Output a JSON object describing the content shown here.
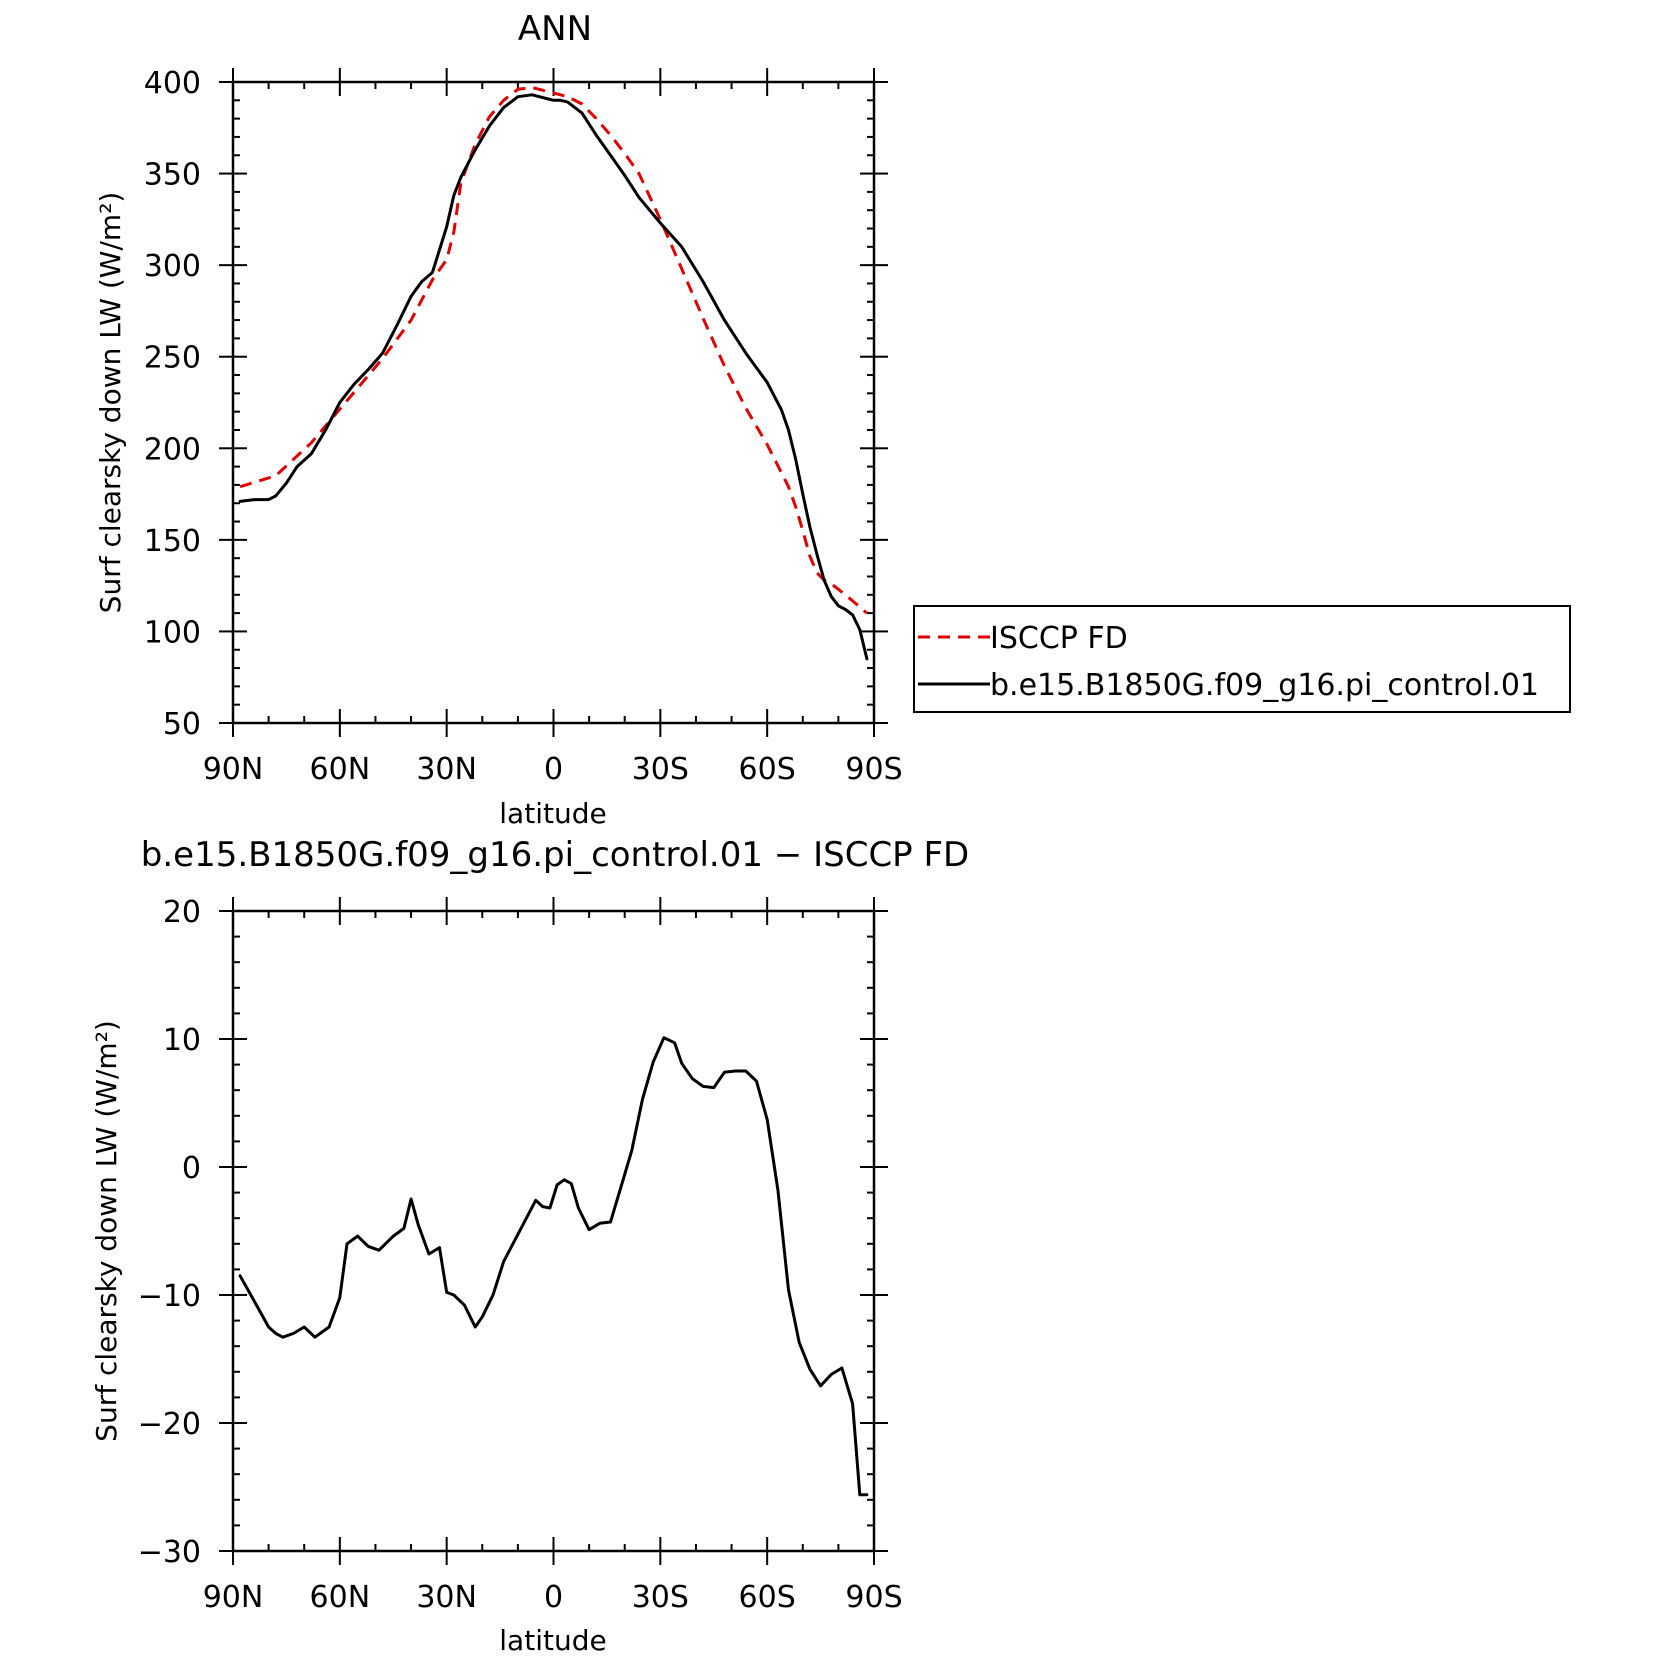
{
  "chart_data": [
    {
      "type": "line",
      "title": "ANN",
      "xlabel": "latitude",
      "ylabel": "Surf clearsky down LW (W/m²)",
      "xlim": [
        90,
        -90
      ],
      "ylim": [
        50,
        400
      ],
      "x_ticks": [
        90,
        60,
        30,
        0,
        -30,
        -60,
        -90
      ],
      "x_tick_labels": [
        "90N",
        "60N",
        "30N",
        "0",
        "30S",
        "60S",
        "90S"
      ],
      "y_ticks": [
        50,
        100,
        150,
        200,
        250,
        300,
        350,
        400
      ],
      "y_tick_labels": [
        "50",
        "100",
        "150",
        "200",
        "250",
        "300",
        "350",
        "400"
      ],
      "legend_position": "right",
      "series": [
        {
          "name": "ISCCP FD",
          "color": "#e00000",
          "dash": "dashed",
          "x": [
            88,
            78,
            68,
            58,
            48,
            40,
            34,
            30,
            28,
            26,
            22,
            18,
            14,
            10,
            6,
            2,
            0,
            -4,
            -8,
            -12,
            -16,
            -20,
            -24,
            -30,
            -36,
            -42,
            -48,
            -54,
            -60,
            -66,
            -68,
            -70,
            -72,
            -74,
            -76,
            -78,
            -82,
            -88
          ],
          "y": [
            179,
            185,
            203,
            226,
            249,
            270,
            292,
            303,
            318,
            345,
            366,
            381,
            390,
            396,
            397,
            395,
            394,
            392,
            388,
            380,
            371,
            361,
            350,
            325,
            298,
            271,
            245,
            222,
            202,
            179,
            168,
            155,
            141,
            132,
            128,
            126,
            120,
            110
          ]
        },
        {
          "name": "b.e15.B1850G.f09_g16.pi_control.01",
          "color": "#000000",
          "dash": "solid",
          "x": [
            88,
            84,
            80,
            78,
            75,
            72,
            68,
            64,
            60,
            56,
            52,
            48,
            44,
            40,
            37,
            34,
            30,
            28,
            26,
            22,
            18,
            14,
            10,
            6,
            4,
            2,
            0,
            -2,
            -4,
            -8,
            -12,
            -16,
            -20,
            -24,
            -30,
            -36,
            -42,
            -48,
            -54,
            -60,
            -64,
            -66,
            -68,
            -70,
            -72,
            -74,
            -76,
            -78,
            -80,
            -82,
            -84,
            -86,
            -88
          ],
          "y": [
            171,
            172,
            172,
            174,
            181,
            190,
            197,
            210,
            225,
            235,
            243,
            252,
            267,
            283,
            291,
            296,
            321,
            338,
            348,
            363,
            376,
            386,
            392,
            393,
            392,
            391,
            390,
            390,
            389,
            383,
            371,
            360,
            349,
            337,
            323,
            310,
            291,
            270,
            252,
            236,
            221,
            210,
            194,
            175,
            157,
            142,
            128,
            119,
            114,
            112,
            109,
            101,
            85
          ]
        }
      ]
    },
    {
      "type": "line",
      "title": "b.e15.B1850G.f09_g16.pi_control.01 − ISCCP FD",
      "xlabel": "latitude",
      "ylabel": "Surf clearsky down LW (W/m²)",
      "xlim": [
        90,
        -90
      ],
      "ylim": [
        -30,
        20
      ],
      "x_ticks": [
        90,
        60,
        30,
        0,
        -30,
        -60,
        -90
      ],
      "x_tick_labels": [
        "90N",
        "60N",
        "30N",
        "0",
        "30S",
        "60S",
        "90S"
      ],
      "y_ticks": [
        -30,
        -20,
        -10,
        0,
        10,
        20
      ],
      "y_tick_labels": [
        "−30",
        "−20",
        "−10",
        "0",
        "10",
        "20"
      ],
      "series": [
        {
          "color": "#000000",
          "dash": "solid",
          "x": [
            88,
            84,
            80,
            78,
            76,
            73,
            70,
            67,
            63,
            60,
            58,
            55,
            52,
            49,
            45,
            42,
            40,
            38,
            35,
            32,
            30,
            28,
            25,
            22,
            20,
            17,
            14,
            11,
            8,
            5,
            3,
            1,
            -1,
            -3,
            -5,
            -7,
            -10,
            -13,
            -16,
            -19,
            -22,
            -25,
            -28,
            -31,
            -34,
            -36,
            -39,
            -42,
            -45,
            -48,
            -51,
            -54,
            -57,
            -60,
            -63,
            -66,
            -69,
            -72,
            -75,
            -78,
            -81,
            -84,
            -86,
            -88
          ],
          "y": [
            -8.5,
            -10.5,
            -12.5,
            -13,
            -13.3,
            -13,
            -12.5,
            -13.3,
            -12.5,
            -10.2,
            -6,
            -5.4,
            -6.2,
            -6.5,
            -5.4,
            -4.8,
            -2.5,
            -4.5,
            -6.8,
            -6.3,
            -9.8,
            -10,
            -10.8,
            -12.5,
            -11.7,
            -10,
            -7.4,
            -5.8,
            -4.2,
            -2.6,
            -3.1,
            -3.2,
            -1.4,
            -1,
            -1.3,
            -3.2,
            -4.9,
            -4.4,
            -4.3,
            -1.5,
            1.3,
            5.3,
            8.2,
            10.1,
            9.7,
            8.1,
            6.9,
            6.3,
            6.2,
            7.4,
            7.5,
            7.5,
            6.7,
            3.7,
            -1.8,
            -9.6,
            -13.7,
            -15.8,
            -17.1,
            -16.2,
            -15.7,
            -18.5,
            -25.6,
            -25.6
          ]
        }
      ]
    }
  ]
}
